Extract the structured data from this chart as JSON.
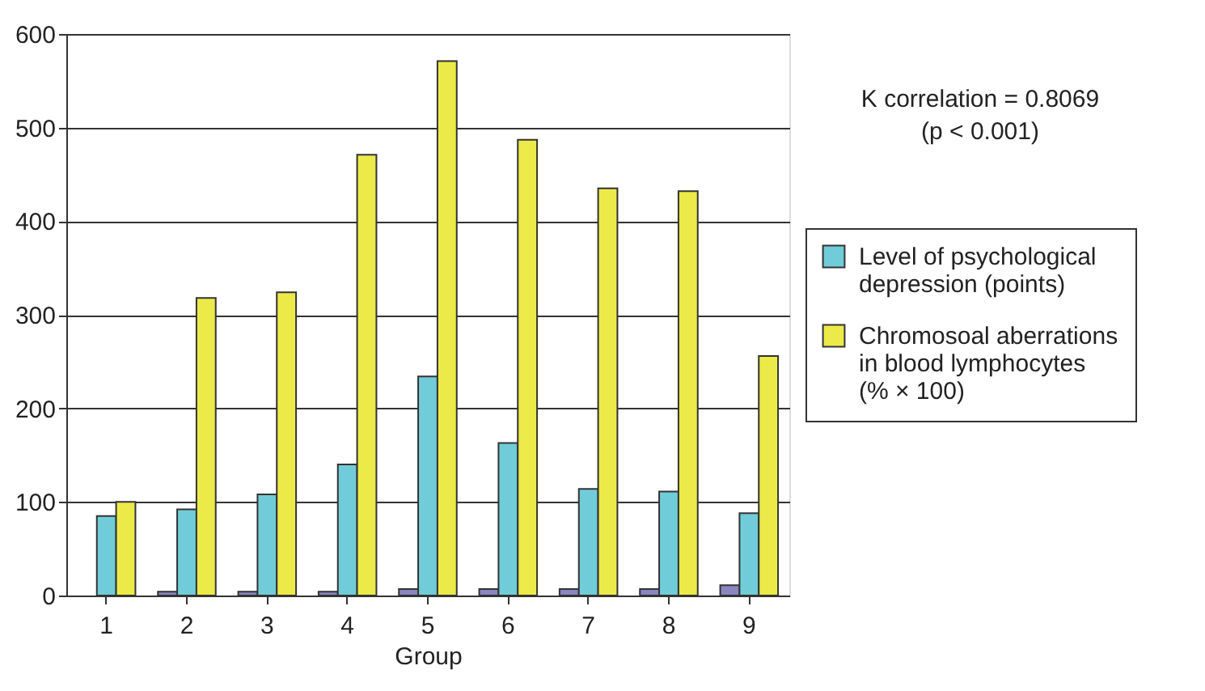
{
  "chart_data": {
    "type": "bar",
    "xlabel": "Group",
    "categories": [
      "1",
      "2",
      "3",
      "4",
      "5",
      "6",
      "7",
      "8",
      "9"
    ],
    "series": [
      {
        "color": "#8a86c0",
        "values": [
          null,
          4,
          4,
          4,
          7,
          7,
          7,
          7,
          11
        ]
      },
      {
        "name": "Level of psychological depression (points)",
        "color": "#70ccd8",
        "values": [
          85,
          92,
          108,
          140,
          234,
          163,
          114,
          111,
          88
        ]
      },
      {
        "name": "Chromosoal aberrations in blood lymphocytes (% × 100)",
        "color": "#ecea48",
        "values": [
          100,
          318,
          324,
          471,
          571,
          487,
          435,
          432,
          256
        ]
      }
    ],
    "ylim": [
      0,
      600
    ],
    "yticks": [
      0,
      100,
      200,
      300,
      400,
      500,
      600
    ],
    "grid": "y",
    "legend": "right",
    "annotations": [
      "K correlation = 0.8069",
      "(p < 0.001)"
    ]
  }
}
